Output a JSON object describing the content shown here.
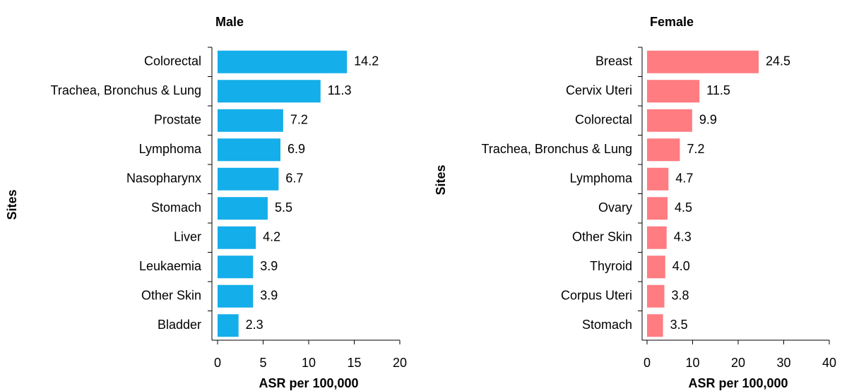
{
  "chart_data": [
    {
      "type": "bar",
      "orientation": "horizontal",
      "title": "Male",
      "ylabel": "Sites",
      "xlabel": "ASR per 100,000",
      "categories": [
        "Colorectal",
        "Trachea, Bronchus & Lung",
        "Prostate",
        "Lymphoma",
        "Nasopharynx",
        "Stomach",
        "Liver",
        "Leukaemia",
        "Other Skin",
        "Bladder"
      ],
      "values": [
        14.2,
        11.3,
        7.2,
        6.9,
        6.7,
        5.5,
        4.2,
        3.9,
        3.9,
        2.3
      ],
      "color": "#14aeea",
      "xlim": [
        0,
        20
      ],
      "xticks": [
        0,
        5,
        10,
        15,
        20
      ]
    },
    {
      "type": "bar",
      "orientation": "horizontal",
      "title": "Female",
      "ylabel": "Sites",
      "xlabel": "ASR per 100,000",
      "categories": [
        "Breast",
        "Cervix Uteri",
        "Colorectal",
        "Trachea, Bronchus & Lung",
        "Lymphoma",
        "Ovary",
        "Other Skin",
        "Thyroid",
        "Corpus Uteri",
        "Stomach"
      ],
      "values": [
        24.5,
        11.5,
        9.9,
        7.2,
        4.7,
        4.5,
        4.3,
        4.0,
        3.8,
        3.5
      ],
      "value_labels": [
        "24.5",
        "11.5",
        "9.9",
        "7.2",
        "4.7",
        "4.5",
        "4.3",
        "4.0",
        "3.8",
        "3.5"
      ],
      "color": "#ff7c80",
      "xlim": [
        0,
        40
      ],
      "xticks": [
        0,
        10,
        20,
        30,
        40
      ]
    }
  ]
}
